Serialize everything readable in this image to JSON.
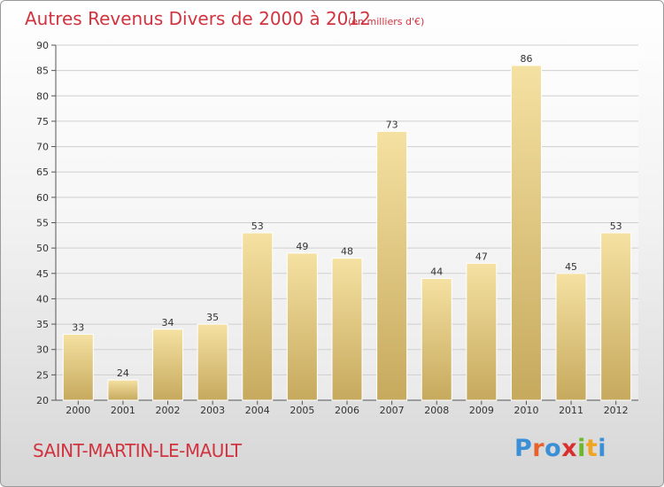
{
  "title": "Autres Revenus Divers de 2000 à 2012",
  "subtitle": "(en milliers d'€)",
  "commune": "SAINT-MARTIN-LE-MAULT",
  "logo": {
    "text": "Proxiti",
    "letters": [
      {
        "ch": "P",
        "color": "#3a8fd6"
      },
      {
        "ch": "r",
        "color": "#e8612c"
      },
      {
        "ch": "o",
        "color": "#3a8fd6"
      },
      {
        "ch": "x",
        "color": "#d92f2f"
      },
      {
        "ch": "i",
        "color": "#6bb82b"
      },
      {
        "ch": "t",
        "color": "#f0a522"
      },
      {
        "ch": "i",
        "color": "#3a8fd6"
      }
    ]
  },
  "colors": {
    "title": "#d1333f",
    "bar_light": "#f3dc98",
    "bar_dark": "#c9ad62",
    "grid": "#cfcfcf"
  },
  "chart_data": {
    "type": "bar",
    "title": "Autres Revenus Divers de 2000 à 2012",
    "subtitle": "(en milliers d'€)",
    "categories": [
      "2000",
      "2001",
      "2002",
      "2003",
      "2004",
      "2005",
      "2006",
      "2007",
      "2008",
      "2009",
      "2010",
      "2011",
      "2012"
    ],
    "values": [
      33,
      24,
      34,
      35,
      53,
      49,
      48,
      73,
      44,
      47,
      86,
      45,
      53
    ],
    "ylim": [
      20,
      90
    ],
    "yticks": [
      20,
      25,
      30,
      35,
      40,
      45,
      50,
      55,
      60,
      65,
      70,
      75,
      80,
      85,
      90
    ],
    "grid": true,
    "data_labels": true
  }
}
